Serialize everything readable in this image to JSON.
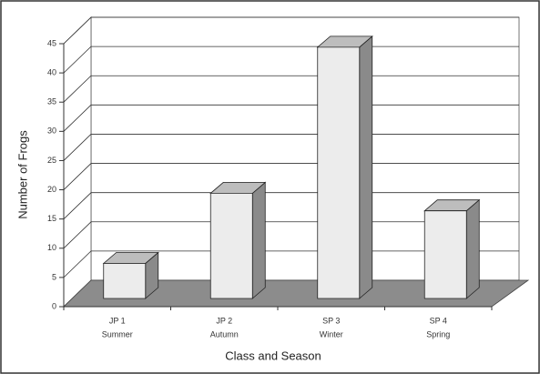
{
  "chart_data": {
    "type": "bar3d",
    "x_label": "Class and Season",
    "y_label": "Number of Frogs",
    "categories": [
      [
        "JP 1",
        "Summer"
      ],
      [
        "JP 2",
        "Autumn"
      ],
      [
        "SP 3",
        "Winter"
      ],
      [
        "SP 4",
        "Spring"
      ]
    ],
    "values": [
      6,
      18,
      43,
      15
    ],
    "color": "#ececec",
    "floor_color": "#8c8c8c",
    "ylim": [
      0,
      45
    ],
    "yticks": [
      0,
      5,
      10,
      15,
      20,
      25,
      30,
      35,
      40,
      45
    ],
    "grid": true
  }
}
